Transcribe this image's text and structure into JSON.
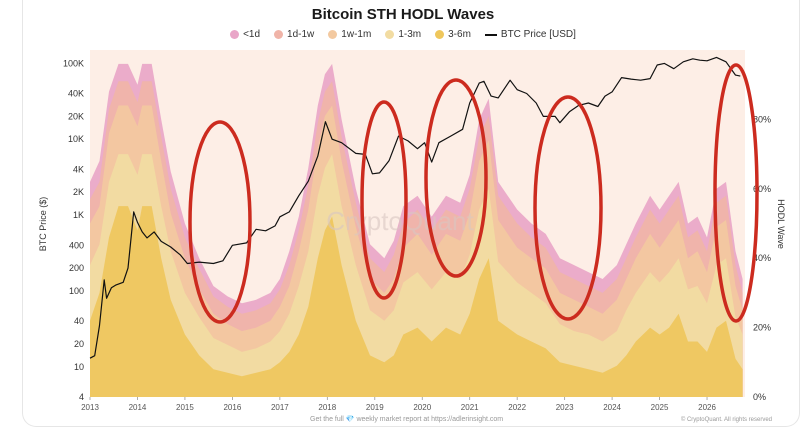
{
  "chart_data": {
    "type": "area",
    "title": "Bitcoin STH HODL Waves",
    "ylabel_left": "BTC Price ($)",
    "ylabel_right": "HODL Wave",
    "x_ticks": [
      "2013",
      "2014",
      "2015",
      "2016",
      "2017",
      "2018",
      "2019",
      "2020",
      "2021",
      "2022",
      "2023",
      "2024",
      "2025",
      "2026"
    ],
    "y_left_ticks": [
      "100K",
      "40K",
      "20K",
      "10K",
      "4K",
      "2K",
      "1K",
      "400",
      "200",
      "100",
      "40",
      "20",
      "10",
      "4"
    ],
    "y_left_tick_values": [
      100000,
      40000,
      20000,
      10000,
      4000,
      2000,
      1000,
      400,
      200,
      100,
      40,
      20,
      10,
      4
    ],
    "y_right_ticks": [
      "80%",
      "60%",
      "40%",
      "20%",
      "0%"
    ],
    "y_right_tick_values": [
      80,
      60,
      40,
      20,
      0
    ],
    "y_left_range": [
      4,
      150000
    ],
    "y_left_scale": "log",
    "y_right_range": [
      0,
      100
    ],
    "x_range": [
      2013,
      2026.8
    ],
    "legend_position": "top",
    "watermark": "CryptoQuant",
    "footer_text": "Get the full 💎 weekly market report at https://adlerinsight.com",
    "footer_right": "© CryptoQuant. All rights reserved",
    "band_x": [
      2013.0,
      2013.2,
      2013.4,
      2013.6,
      2013.8,
      2014.0,
      2014.1,
      2014.3,
      2014.5,
      2014.7,
      2015.0,
      2015.3,
      2015.6,
      2015.9,
      2016.2,
      2016.5,
      2016.8,
      2017.0,
      2017.2,
      2017.4,
      2017.6,
      2017.8,
      2017.95,
      2018.1,
      2018.3,
      2018.6,
      2018.9,
      2019.2,
      2019.4,
      2019.6,
      2019.9,
      2020.2,
      2020.5,
      2020.8,
      2021.0,
      2021.2,
      2021.4,
      2021.6,
      2021.8,
      2022.0,
      2022.3,
      2022.6,
      2022.9,
      2023.2,
      2023.5,
      2023.8,
      2024.1,
      2024.3,
      2024.5,
      2024.8,
      2025.0,
      2025.2,
      2025.4,
      2025.6,
      2025.8,
      2026.0,
      2026.2,
      2026.4,
      2026.6,
      2026.75
    ],
    "series": [
      {
        "name": "<1d",
        "color": "#e9a6c8",
        "values": [
          62,
          68,
          88,
          96,
          96,
          90,
          96,
          96,
          80,
          65,
          50,
          40,
          32,
          29,
          27,
          28,
          30,
          34,
          42,
          52,
          66,
          84,
          93,
          96,
          80,
          60,
          44,
          40,
          45,
          55,
          58,
          52,
          58,
          56,
          64,
          80,
          86,
          62,
          58,
          54,
          50,
          47,
          40,
          38,
          36,
          34,
          38,
          44,
          50,
          58,
          54,
          58,
          62,
          50,
          52,
          46,
          60,
          62,
          42,
          34
        ]
      },
      {
        "name": "1d-1w",
        "color": "#f0b4a8",
        "values": [
          57,
          62,
          83,
          91,
          91,
          85,
          91,
          91,
          75,
          60,
          46,
          37,
          29,
          26,
          24,
          25,
          27,
          31,
          38,
          48,
          61,
          79,
          88,
          91,
          75,
          56,
          40,
          36,
          41,
          50,
          54,
          48,
          54,
          52,
          60,
          75,
          81,
          58,
          54,
          50,
          46,
          43,
          36,
          34,
          32,
          30,
          34,
          40,
          46,
          54,
          50,
          54,
          58,
          46,
          48,
          42,
          56,
          58,
          38,
          30
        ]
      },
      {
        "name": "1w-1m",
        "color": "#f3c9a0",
        "values": [
          50,
          55,
          76,
          84,
          84,
          78,
          84,
          84,
          68,
          53,
          40,
          31,
          24,
          21,
          19,
          20,
          22,
          26,
          32,
          42,
          54,
          72,
          81,
          84,
          68,
          49,
          34,
          30,
          34,
          43,
          47,
          41,
          47,
          45,
          53,
          68,
          74,
          51,
          47,
          43,
          40,
          37,
          30,
          28,
          26,
          24,
          28,
          34,
          40,
          47,
          43,
          47,
          51,
          40,
          42,
          36,
          49,
          51,
          32,
          25
        ]
      },
      {
        "name": "1-3m",
        "color": "#f2dca2",
        "values": [
          38,
          44,
          62,
          70,
          70,
          64,
          70,
          70,
          55,
          42,
          30,
          23,
          17,
          15,
          13,
          14,
          16,
          19,
          24,
          32,
          42,
          58,
          66,
          70,
          55,
          38,
          25,
          22,
          25,
          33,
          36,
          31,
          36,
          34,
          41,
          54,
          60,
          39,
          36,
          33,
          30,
          27,
          21,
          19,
          18,
          16,
          19,
          25,
          30,
          36,
          33,
          36,
          40,
          31,
          32,
          27,
          38,
          40,
          23,
          18
        ]
      },
      {
        "name": "3-6m",
        "color": "#efc75c",
        "values": [
          22,
          30,
          46,
          55,
          55,
          48,
          55,
          55,
          40,
          28,
          18,
          12,
          8,
          7,
          6,
          7,
          8,
          10,
          13,
          18,
          26,
          40,
          48,
          52,
          38,
          22,
          12,
          10,
          12,
          18,
          20,
          16,
          20,
          18,
          24,
          34,
          40,
          22,
          20,
          18,
          16,
          14,
          10,
          9,
          8,
          7,
          9,
          12,
          16,
          20,
          18,
          20,
          24,
          16,
          16,
          13,
          20,
          22,
          11,
          8
        ]
      }
    ],
    "price_series": {
      "name": "BTC Price [USD]",
      "color": "#111111",
      "x": [
        2013.0,
        2013.1,
        2013.2,
        2013.3,
        2013.35,
        2013.45,
        2013.55,
        2013.7,
        2013.8,
        2013.92,
        2014.0,
        2014.1,
        2014.2,
        2014.35,
        2014.5,
        2014.7,
        2014.9,
        2015.05,
        2015.3,
        2015.6,
        2015.8,
        2016.0,
        2016.3,
        2016.5,
        2016.7,
        2016.9,
        2017.0,
        2017.2,
        2017.4,
        2017.6,
        2017.8,
        2017.96,
        2018.1,
        2018.3,
        2018.6,
        2018.8,
        2018.95,
        2019.1,
        2019.3,
        2019.5,
        2019.7,
        2019.9,
        2020.05,
        2020.2,
        2020.35,
        2020.6,
        2020.85,
        2021.0,
        2021.2,
        2021.3,
        2021.45,
        2021.6,
        2021.85,
        2022.0,
        2022.2,
        2022.4,
        2022.55,
        2022.8,
        2022.9,
        2023.1,
        2023.3,
        2023.5,
        2023.7,
        2023.85,
        2024.0,
        2024.2,
        2024.4,
        2024.6,
        2024.8,
        2024.95,
        2025.1,
        2025.3,
        2025.5,
        2025.7,
        2025.85,
        2026.0,
        2026.2,
        2026.4,
        2026.6,
        2026.7
      ],
      "values": [
        13,
        14,
        35,
        140,
        80,
        110,
        120,
        130,
        200,
        1100,
        800,
        600,
        500,
        600,
        450,
        380,
        300,
        230,
        240,
        230,
        250,
        400,
        430,
        650,
        620,
        720,
        950,
        1100,
        1800,
        2800,
        6000,
        17000,
        10000,
        9000,
        6500,
        6300,
        3500,
        3600,
        5200,
        11000,
        9500,
        7500,
        9000,
        5000,
        9000,
        11000,
        13500,
        30000,
        55000,
        58000,
        37000,
        35000,
        60000,
        45000,
        40000,
        30000,
        20000,
        20000,
        16500,
        23000,
        28000,
        30000,
        27000,
        37000,
        42000,
        65000,
        62000,
        60000,
        63000,
        95000,
        100000,
        85000,
        105000,
        115000,
        110000,
        108000,
        120000,
        105000,
        70000,
        68000
      ]
    }
  }
}
